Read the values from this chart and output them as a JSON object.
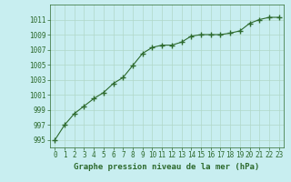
{
  "x": [
    0,
    1,
    2,
    3,
    4,
    5,
    6,
    7,
    8,
    9,
    10,
    11,
    12,
    13,
    14,
    15,
    16,
    17,
    18,
    19,
    20,
    21,
    22,
    23
  ],
  "y": [
    995.0,
    997.0,
    998.5,
    999.5,
    1000.5,
    1001.3,
    1002.5,
    1003.3,
    1004.9,
    1006.5,
    1007.3,
    1007.6,
    1007.6,
    1008.0,
    1008.8,
    1009.0,
    1009.0,
    1009.0,
    1009.2,
    1009.5,
    1010.5,
    1011.0,
    1011.3,
    1011.3
  ],
  "line_color": "#2d6a2d",
  "marker_color": "#2d6a2d",
  "bg_color": "#c8eef0",
  "grid_color": "#b0d8c8",
  "xlabel": "Graphe pression niveau de la mer (hPa)",
  "xlabel_color": "#2d6a2d",
  "tick_color": "#2d6a2d",
  "ylim": [
    994,
    1013
  ],
  "xlim": [
    -0.5,
    23.5
  ],
  "yticks": [
    995,
    997,
    999,
    1001,
    1003,
    1005,
    1007,
    1009,
    1011
  ],
  "xticks": [
    0,
    1,
    2,
    3,
    4,
    5,
    6,
    7,
    8,
    9,
    10,
    11,
    12,
    13,
    14,
    15,
    16,
    17,
    18,
    19,
    20,
    21,
    22,
    23
  ]
}
